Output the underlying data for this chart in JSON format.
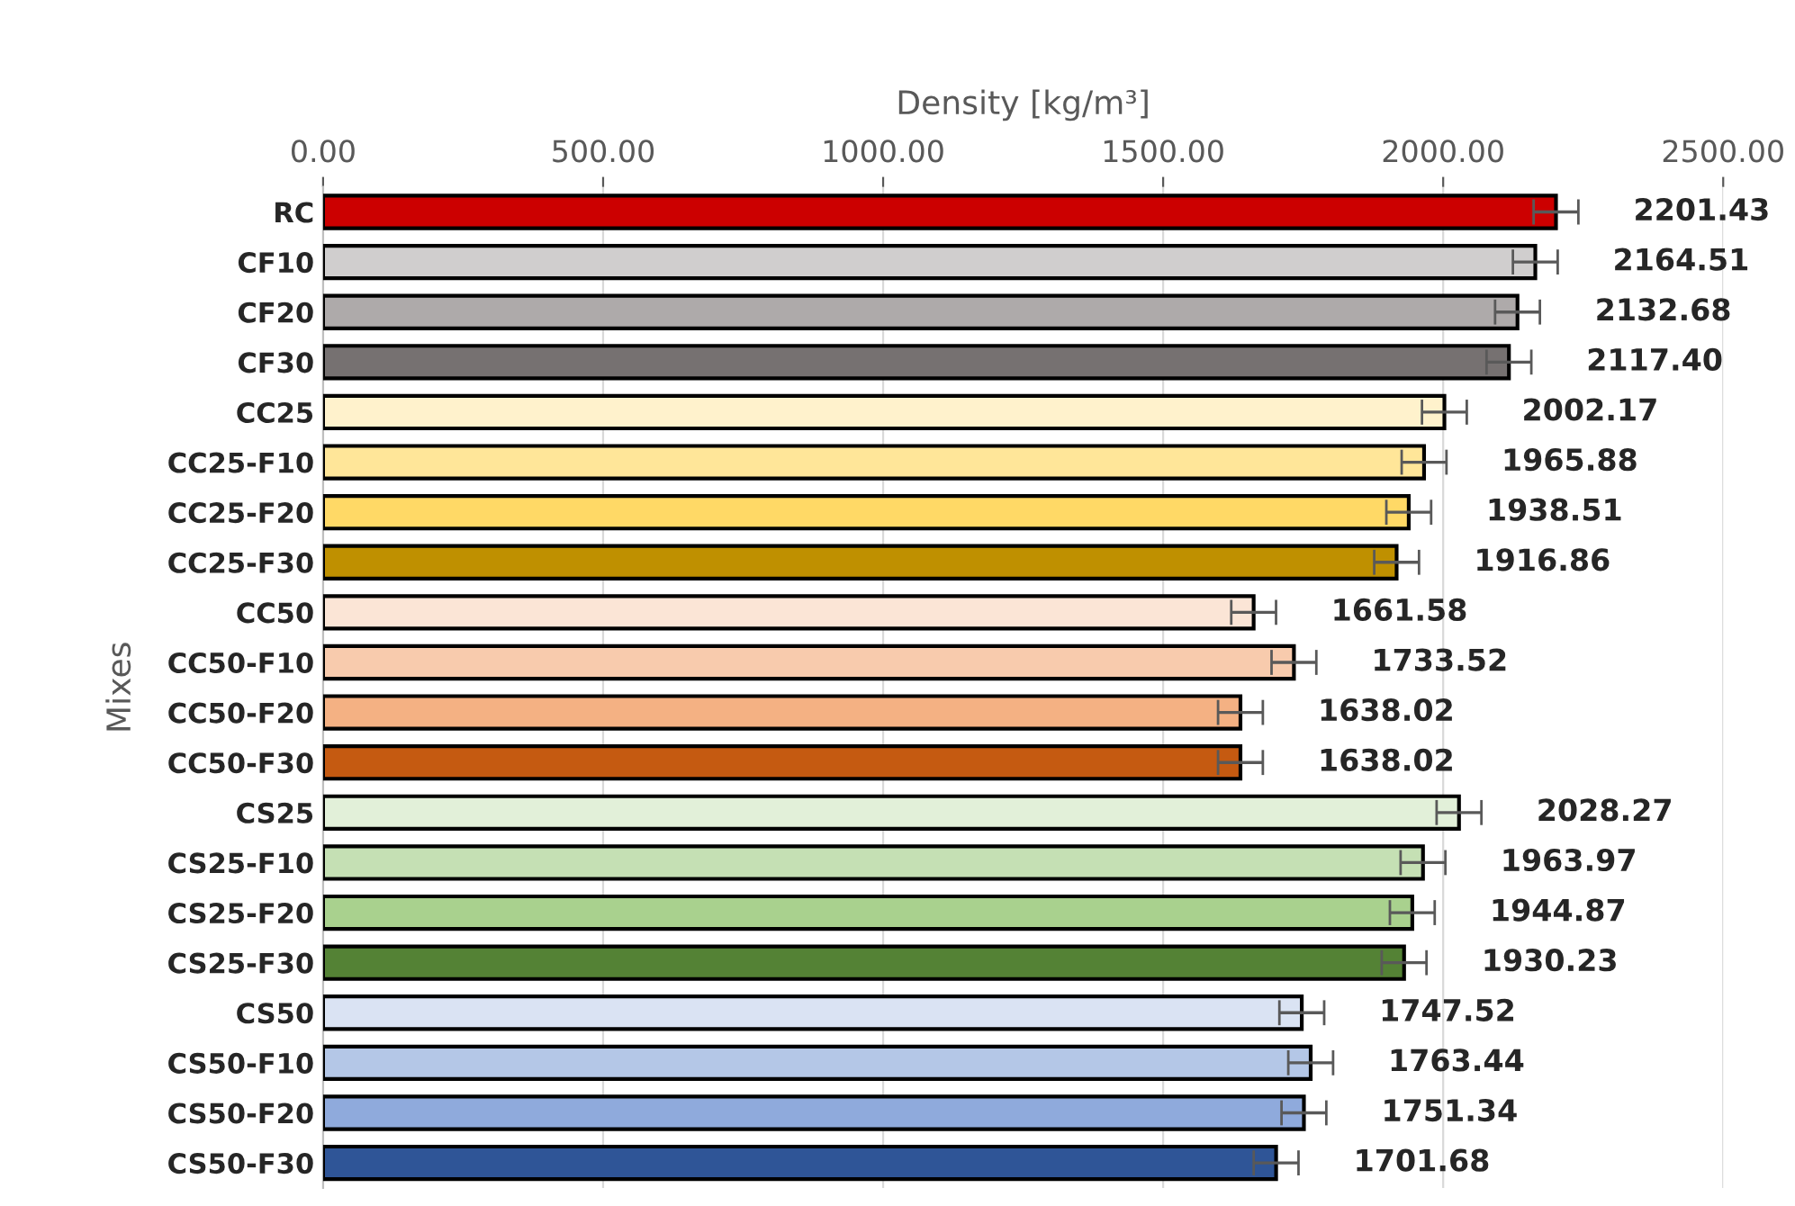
{
  "chart_data": {
    "type": "bar",
    "orientation": "horizontal",
    "xlabel": "Density [kg/m³]",
    "ylabel": "Mixes",
    "categories": [
      "RC",
      "CF10",
      "CF20",
      "CF30",
      "CC25",
      "CC25-F10",
      "CC25-F20",
      "CC25-F30",
      "CC50",
      "CC50-F10",
      "CC50-F20",
      "CC50-F30",
      "CS25",
      "CS25-F10",
      "CS25-F20",
      "CS25-F30",
      "CS50",
      "CS50-F10",
      "CS50-F20",
      "CS50-F30"
    ],
    "values": [
      2201.43,
      2164.51,
      2132.68,
      2117.4,
      2002.17,
      1965.88,
      1938.51,
      1916.86,
      1661.58,
      1733.52,
      1638.02,
      1638.02,
      2028.27,
      1963.97,
      1944.87,
      1930.23,
      1747.52,
      1763.44,
      1751.34,
      1701.68
    ],
    "value_labels": [
      "2201.43",
      "2164.51",
      "2132.68",
      "2117.40",
      "2002.17",
      "1965.88",
      "1938.51",
      "1916.86",
      "1661.58",
      "1733.52",
      "1638.02",
      "1638.02",
      "2028.27",
      "1963.97",
      "1944.87",
      "1930.23",
      "1747.52",
      "1763.44",
      "1751.34",
      "1701.68"
    ],
    "errors": [
      40,
      40,
      40,
      40,
      40,
      40,
      40,
      40,
      40,
      40,
      40,
      40,
      40,
      40,
      40,
      40,
      40,
      40,
      40,
      40
    ],
    "colors": [
      "#cc0000",
      "#d0cece",
      "#aeaaaa",
      "#767171",
      "#fff2cc",
      "#ffe699",
      "#ffd966",
      "#bf9000",
      "#fbe5d6",
      "#f8cbad",
      "#f4b183",
      "#c55a11",
      "#e2f0d9",
      "#c5e0b4",
      "#a9d18e",
      "#548235",
      "#dae3f3",
      "#b4c7e7",
      "#8faadc",
      "#2f5597"
    ],
    "xlim": [
      0,
      2500
    ],
    "xticks": [
      {
        "value": 0,
        "label": "0.00"
      },
      {
        "value": 500,
        "label": "500.00"
      },
      {
        "value": 1000,
        "label": "1000.00"
      },
      {
        "value": 1500,
        "label": "1500.00"
      },
      {
        "value": 2000,
        "label": "2000.00"
      },
      {
        "value": 2500,
        "label": "2500.00"
      }
    ],
    "grid": "x",
    "legend": false
  }
}
